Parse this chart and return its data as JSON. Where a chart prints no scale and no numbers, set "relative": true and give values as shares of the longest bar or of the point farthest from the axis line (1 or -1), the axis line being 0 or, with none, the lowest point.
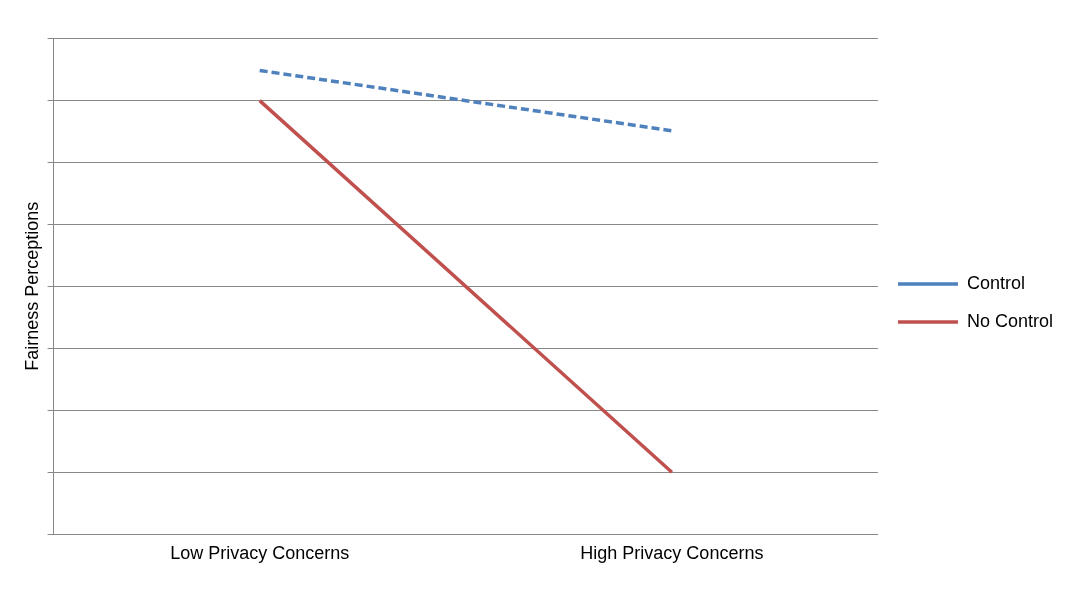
{
  "chart_data": {
    "type": "line",
    "ylabel": "Fairness Perceptions",
    "categories": [
      "Low Privacy Concerns",
      "High Privacy Concerns"
    ],
    "relative": true,
    "grid": "y",
    "legend": "right",
    "marker": "none",
    "series": [
      {
        "name": "Control",
        "color": "#4f81bd",
        "line_style": "dashed",
        "values": [
          1,
          0.87
        ]
      },
      {
        "name": "No Control",
        "color": "#c0504d",
        "line_style": "solid",
        "values": [
          0.935,
          0.134
        ]
      }
    ]
  }
}
